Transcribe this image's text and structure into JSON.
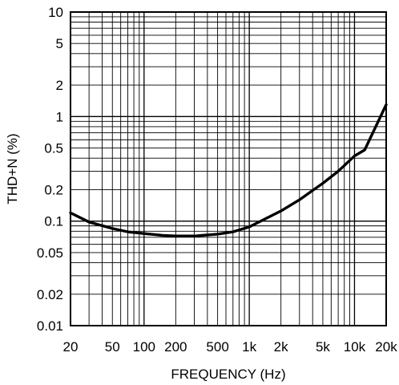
{
  "chart_data": {
    "type": "line",
    "xlabel": "FREQUENCY (Hz)",
    "ylabel": "THD+N (%)",
    "x_scale": "log",
    "y_scale": "log",
    "xlim": [
      20,
      20000
    ],
    "ylim": [
      0.01,
      10
    ],
    "grid": true,
    "x_ticks": [
      {
        "value": 20,
        "label": "20"
      },
      {
        "value": 50,
        "label": "50"
      },
      {
        "value": 100,
        "label": "100"
      },
      {
        "value": 200,
        "label": "200"
      },
      {
        "value": 500,
        "label": "500"
      },
      {
        "value": 1000,
        "label": "1k"
      },
      {
        "value": 2000,
        "label": "2k"
      },
      {
        "value": 5000,
        "label": "5k"
      },
      {
        "value": 10000,
        "label": "10k"
      },
      {
        "value": 20000,
        "label": "20k"
      }
    ],
    "y_ticks": [
      {
        "value": 0.01,
        "label": "0.01"
      },
      {
        "value": 0.02,
        "label": "0.02"
      },
      {
        "value": 0.05,
        "label": "0.05"
      },
      {
        "value": 0.1,
        "label": "0.1"
      },
      {
        "value": 0.2,
        "label": "0.2"
      },
      {
        "value": 0.5,
        "label": "0.5"
      },
      {
        "value": 1,
        "label": "1"
      },
      {
        "value": 2,
        "label": "2"
      },
      {
        "value": 5,
        "label": "5"
      },
      {
        "value": 10,
        "label": "10"
      }
    ],
    "series": [
      {
        "x": [
          20,
          30,
          50,
          70,
          100,
          150,
          200,
          300,
          500,
          700,
          1000,
          2000,
          3000,
          5000,
          7000,
          10000,
          12500,
          20000
        ],
        "y": [
          0.12,
          0.098,
          0.085,
          0.079,
          0.076,
          0.073,
          0.072,
          0.072,
          0.075,
          0.079,
          0.088,
          0.125,
          0.16,
          0.23,
          0.3,
          0.42,
          0.48,
          1.3
        ]
      }
    ]
  }
}
